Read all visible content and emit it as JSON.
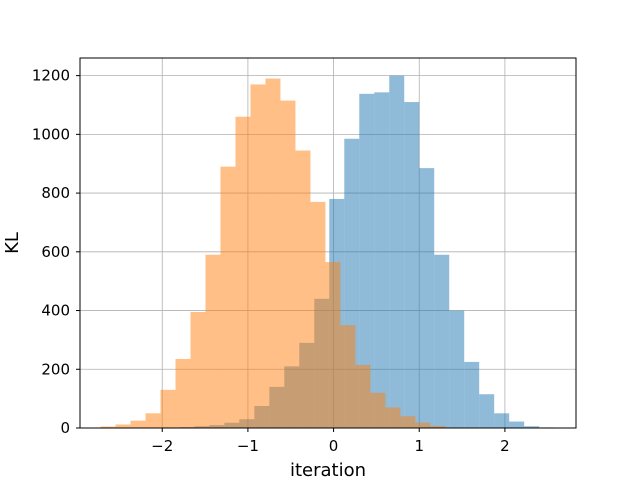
{
  "chart_data": {
    "type": "histogram",
    "title": "",
    "xlabel": "iteration",
    "ylabel": "KL",
    "xlim": [
      -2.96,
      2.83
    ],
    "ylim": [
      0,
      1260
    ],
    "xticks": [
      -2,
      -1,
      0,
      1,
      2
    ],
    "xtick_labels": [
      "−2",
      "−1",
      "0",
      "1",
      "2"
    ],
    "yticks": [
      0,
      200,
      400,
      600,
      800,
      1000,
      1200
    ],
    "ytick_labels": [
      "0",
      "200",
      "400",
      "600",
      "800",
      "1000",
      "1200"
    ],
    "grid": true,
    "alpha": 0.5,
    "series": [
      {
        "color": "#1f77b4",
        "bin_edges": [
          -2.15,
          -1.975,
          -1.8,
          -1.625,
          -1.45,
          -1.275,
          -1.1,
          -0.925,
          -0.75,
          -0.575,
          -0.4,
          -0.225,
          -0.05,
          0.125,
          0.3,
          0.475,
          0.65,
          0.825,
          1.0,
          1.175,
          1.35,
          1.525,
          1.7,
          1.875,
          2.05,
          2.225,
          2.4,
          2.575
        ],
        "counts": [
          1,
          2,
          3,
          6,
          10,
          18,
          30,
          75,
          140,
          210,
          290,
          440,
          780,
          985,
          1138,
          1143,
          1200,
          1110,
          885,
          590,
          400,
          225,
          115,
          50,
          22,
          6,
          2
        ]
      },
      {
        "color": "#ff7f0e",
        "bin_edges": [
          -2.72,
          -2.545,
          -2.37,
          -2.195,
          -2.02,
          -1.845,
          -1.67,
          -1.495,
          -1.32,
          -1.145,
          -0.97,
          -0.795,
          -0.62,
          -0.445,
          -0.27,
          -0.095,
          0.08,
          0.255,
          0.43,
          0.605,
          0.78,
          0.955,
          1.13,
          1.305,
          1.48
        ],
        "counts": [
          5,
          12,
          25,
          50,
          130,
          235,
          395,
          590,
          890,
          1060,
          1170,
          1190,
          1115,
          945,
          770,
          565,
          350,
          215,
          120,
          70,
          40,
          18,
          7,
          2
        ]
      }
    ]
  }
}
